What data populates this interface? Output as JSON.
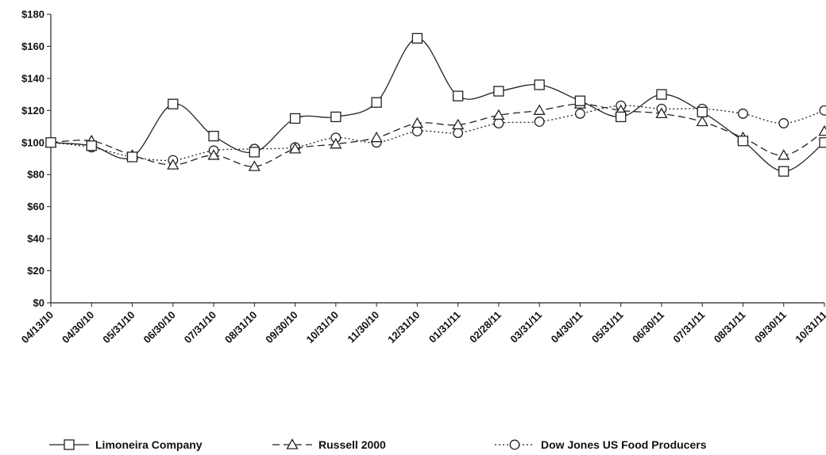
{
  "chart_data": {
    "type": "line",
    "categories": [
      "04/13/10",
      "04/30/10",
      "05/31/10",
      "06/30/10",
      "07/31/10",
      "08/31/10",
      "09/30/10",
      "10/31/10",
      "11/30/10",
      "12/31/10",
      "01/31/11",
      "02/28/11",
      "03/31/11",
      "04/30/11",
      "05/31/11",
      "06/30/11",
      "07/31/11",
      "08/31/11",
      "09/30/11",
      "10/31/11"
    ],
    "y_ticks": [
      "$0",
      "$20",
      "$40",
      "$60",
      "$80",
      "$100",
      "$120",
      "$140",
      "$160",
      "$180"
    ],
    "ylim": [
      0,
      180
    ],
    "grid": false,
    "legend_position": "bottom",
    "series": [
      {
        "name": "Limoneira Company",
        "marker": "square",
        "dash": "solid",
        "values": [
          100,
          98,
          91,
          124,
          104,
          94,
          115,
          116,
          125,
          165,
          129,
          132,
          136,
          126,
          116,
          130,
          119,
          101,
          82,
          100
        ]
      },
      {
        "name": "Russell 2000",
        "marker": "triangle",
        "dash": "dashed",
        "values": [
          100,
          101,
          92,
          86,
          92,
          85,
          96,
          99,
          103,
          112,
          111,
          117,
          120,
          124,
          120,
          118,
          113,
          103,
          92,
          107
        ]
      },
      {
        "name": "Dow Jones US Food Producers",
        "marker": "circle",
        "dash": "dotted",
        "values": [
          100,
          97,
          91,
          89,
          95,
          96,
          97,
          103,
          100,
          107,
          106,
          112,
          113,
          118,
          123,
          121,
          121,
          118,
          112,
          120
        ]
      }
    ],
    "colors": {
      "line": "#222222",
      "marker_fill": "#ffffff"
    }
  }
}
